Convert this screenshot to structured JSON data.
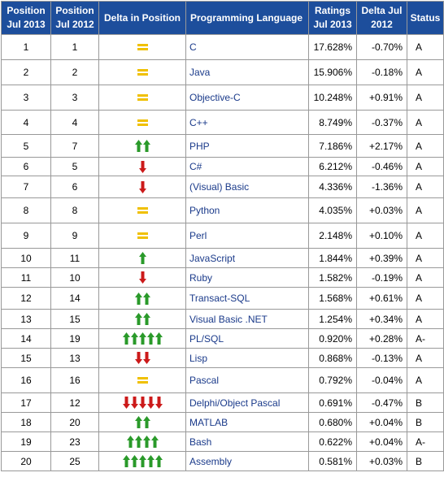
{
  "headers": {
    "pos2013": "Position Jul 2013",
    "pos2012": "Position Jul 2012",
    "delta_pos": "Delta in Position",
    "language": "Programming Language",
    "ratings": "Ratings Jul 2013",
    "delta": "Delta Jul 2012",
    "status": "Status"
  },
  "colors": {
    "header_bg": "#1d4e9c",
    "up_arrow": "#2a9a2a",
    "down_arrow": "#cc1a1a",
    "same": "#f0c000"
  },
  "rows": [
    {
      "p13": "1",
      "p12": "1",
      "dir": "same",
      "n": 0,
      "lang": "C",
      "rating": "17.628%",
      "delta": "-0.70%",
      "status": "A"
    },
    {
      "p13": "2",
      "p12": "2",
      "dir": "same",
      "n": 0,
      "lang": "Java",
      "rating": "15.906%",
      "delta": "-0.18%",
      "status": "A"
    },
    {
      "p13": "3",
      "p12": "3",
      "dir": "same",
      "n": 0,
      "lang": "Objective-C",
      "rating": "10.248%",
      "delta": "+0.91%",
      "status": "A"
    },
    {
      "p13": "4",
      "p12": "4",
      "dir": "same",
      "n": 0,
      "lang": "C++",
      "rating": "8.749%",
      "delta": "-0.37%",
      "status": "A"
    },
    {
      "p13": "5",
      "p12": "7",
      "dir": "up",
      "n": 2,
      "lang": "PHP",
      "rating": "7.186%",
      "delta": "+2.17%",
      "status": "A"
    },
    {
      "p13": "6",
      "p12": "5",
      "dir": "down",
      "n": 1,
      "lang": "C#",
      "rating": "6.212%",
      "delta": "-0.46%",
      "status": "A"
    },
    {
      "p13": "7",
      "p12": "6",
      "dir": "down",
      "n": 1,
      "lang": "(Visual) Basic",
      "rating": "4.336%",
      "delta": "-1.36%",
      "status": "A"
    },
    {
      "p13": "8",
      "p12": "8",
      "dir": "same",
      "n": 0,
      "lang": "Python",
      "rating": "4.035%",
      "delta": "+0.03%",
      "status": "A"
    },
    {
      "p13": "9",
      "p12": "9",
      "dir": "same",
      "n": 0,
      "lang": "Perl",
      "rating": "2.148%",
      "delta": "+0.10%",
      "status": "A"
    },
    {
      "p13": "10",
      "p12": "11",
      "dir": "up",
      "n": 1,
      "lang": "JavaScript",
      "rating": "1.844%",
      "delta": "+0.39%",
      "status": "A"
    },
    {
      "p13": "11",
      "p12": "10",
      "dir": "down",
      "n": 1,
      "lang": "Ruby",
      "rating": "1.582%",
      "delta": "-0.19%",
      "status": "A"
    },
    {
      "p13": "12",
      "p12": "14",
      "dir": "up",
      "n": 2,
      "lang": "Transact-SQL",
      "rating": "1.568%",
      "delta": "+0.61%",
      "status": "A"
    },
    {
      "p13": "13",
      "p12": "15",
      "dir": "up",
      "n": 2,
      "lang": "Visual Basic .NET",
      "rating": "1.254%",
      "delta": "+0.34%",
      "status": "A"
    },
    {
      "p13": "14",
      "p12": "19",
      "dir": "up",
      "n": 5,
      "lang": "PL/SQL",
      "rating": "0.920%",
      "delta": "+0.28%",
      "status": "A-"
    },
    {
      "p13": "15",
      "p12": "13",
      "dir": "down",
      "n": 2,
      "lang": "Lisp",
      "rating": "0.868%",
      "delta": "-0.13%",
      "status": "A"
    },
    {
      "p13": "16",
      "p12": "16",
      "dir": "same",
      "n": 0,
      "lang": "Pascal",
      "rating": "0.792%",
      "delta": "-0.04%",
      "status": "A"
    },
    {
      "p13": "17",
      "p12": "12",
      "dir": "down",
      "n": 5,
      "lang": "Delphi/Object Pascal",
      "rating": "0.691%",
      "delta": "-0.47%",
      "status": "B"
    },
    {
      "p13": "18",
      "p12": "20",
      "dir": "up",
      "n": 2,
      "lang": "MATLAB",
      "rating": "0.680%",
      "delta": "+0.04%",
      "status": "B"
    },
    {
      "p13": "19",
      "p12": "23",
      "dir": "up",
      "n": 4,
      "lang": "Bash",
      "rating": "0.622%",
      "delta": "+0.04%",
      "status": "A-"
    },
    {
      "p13": "20",
      "p12": "25",
      "dir": "up",
      "n": 5,
      "lang": "Assembly",
      "rating": "0.581%",
      "delta": "+0.03%",
      "status": "B"
    }
  ]
}
